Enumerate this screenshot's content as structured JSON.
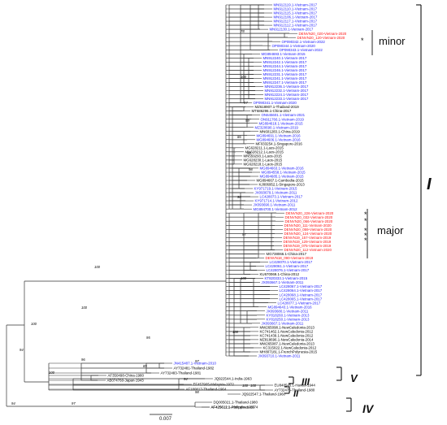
{
  "colors": {
    "vietnam_2010s": "#1a1aff",
    "vietnam_2019_2020": "#ff1010",
    "other": "#000000"
  },
  "leaves": [
    {
      "label": "MN912119.1-Vietnam-2017",
      "color": "blue"
    },
    {
      "label": "MN912110.1-Vietnam-2017",
      "color": "blue"
    },
    {
      "label": "MN912115.1-Vietnam-2017",
      "color": "blue"
    },
    {
      "label": "MN912106.1-Vietnam-2017",
      "color": "blue"
    },
    {
      "label": "MN912117.1-Vietnam-2017",
      "color": "blue"
    },
    {
      "label": "MN912112.1-Vietnam-2017",
      "color": "blue"
    },
    {
      "label": "MN912130.1-Vietnam-2017",
      "color": "blue"
    },
    {
      "label": "DENVN20_020-Vietnam-2020",
      "color": "red"
    },
    {
      "label": "DENVN20_120-Vietnam-2020",
      "color": "red"
    },
    {
      "label": "OP090342.1-Vietnam-2022",
      "color": "blue"
    },
    {
      "label": "OP090344.1-Vietnam-2020",
      "color": "blue"
    },
    {
      "label": "OP090343.1-Vietnam-2022",
      "color": "blue"
    },
    {
      "label": "MG894693.1-Vietnam-2015",
      "color": "blue"
    },
    {
      "label": "MN912240.1-Vietnam-2017",
      "color": "blue"
    },
    {
      "label": "MN912242.1-Vietnam-2017",
      "color": "blue"
    },
    {
      "label": "MN912244.1-Vietnam-2017",
      "color": "blue"
    },
    {
      "label": "MN912246.1-Vietnam-2017",
      "color": "blue"
    },
    {
      "label": "MN912231.1-Vietnam-2017",
      "color": "blue"
    },
    {
      "label": "MN912241.1-Vietnam-2017",
      "color": "blue"
    },
    {
      "label": "MN912247.1-Vietnam-2017",
      "color": "blue"
    },
    {
      "label": "MN912236.1-Vietnam-2017",
      "color": "blue"
    },
    {
      "label": "MN912232.1-Vietnam-2017",
      "color": "blue"
    },
    {
      "label": "MN912224.1-Vietnam-2017",
      "color": "blue"
    },
    {
      "label": "MN912233.1-Vietnam-2017",
      "color": "blue"
    },
    {
      "label": "OP090341.1-Vietnam-2020",
      "color": "blue"
    },
    {
      "label": "MZ618907.1-Thailand-2019",
      "color": "black"
    },
    {
      "label": "MT686296.1-China-2017",
      "color": "black"
    },
    {
      "label": "ON645601.1-Vietnam-2021",
      "color": "blue"
    },
    {
      "label": "ON911766.1-Vietnam-2019",
      "color": "blue"
    },
    {
      "label": "MG894618.1-Vietnam-2015",
      "color": "blue"
    },
    {
      "label": "MZ320690.1-Vietnam-2019",
      "color": "blue"
    },
    {
      "label": "MN601283.1-China-2019",
      "color": "black"
    },
    {
      "label": "MG894691.1-Vietnam-2016",
      "color": "blue"
    },
    {
      "label": "MG894606.1-Vietnam-2016",
      "color": "blue"
    },
    {
      "label": "MF033254.1-Singapore-2016",
      "color": "black"
    },
    {
      "label": "MG628211.1-Laos-2015",
      "color": "black"
    },
    {
      "label": "MN628212.1-Laos-2015",
      "color": "black"
    },
    {
      "label": "MN559293.1-Laos-2015",
      "color": "black"
    },
    {
      "label": "MG628230.1-Laos-2015",
      "color": "black"
    },
    {
      "label": "MG628218.1-Laos-2015",
      "color": "black"
    },
    {
      "label": "MG894663.1-Vietnam-2016",
      "color": "blue"
    },
    {
      "label": "MG894558.1-Vietnam-2015",
      "color": "blue"
    },
    {
      "label": "MG894685.1-Vietnam-2015",
      "color": "blue"
    },
    {
      "label": "MG894667.1-Cambodia-2015",
      "color": "black"
    },
    {
      "label": "KJ806952.1-Singapore-2013",
      "color": "black"
    },
    {
      "label": "KY971719.1-Vietnam-2015",
      "color": "blue"
    },
    {
      "label": "JX093679.1-Vietnam-2011",
      "color": "blue"
    },
    {
      "label": "LC428073.1-Vietnam-2017",
      "color": "blue"
    },
    {
      "label": "KY971714.1-Vietnam-2012",
      "color": "blue"
    },
    {
      "label": "JX093690.1-Vietnam-2011",
      "color": "blue"
    },
    {
      "label": "MG894700.1-Vietnam-2012",
      "color": "blue"
    },
    {
      "label": "DENVN20_226-Vietnam-2020",
      "color": "red"
    },
    {
      "label": "DENVN20_032-Vietnam-2020",
      "color": "red"
    },
    {
      "label": "DENVN20_066-Vietnam-2020",
      "color": "red"
    },
    {
      "label": "DENVN20_111-Vietnam-2020",
      "color": "red"
    },
    {
      "label": "DENVN20_059-Vietnam-2020",
      "color": "red"
    },
    {
      "label": "DENVN20_124-Vietnam-2020",
      "color": "red"
    },
    {
      "label": "DENVN19_157-Vietnam-2019",
      "color": "red"
    },
    {
      "label": "DENVN19_129-Vietnam-2019",
      "color": "red"
    },
    {
      "label": "DENVN19_075-Vietnam-2019",
      "color": "red"
    },
    {
      "label": "DENVN20_112-Vietnam-2020",
      "color": "red"
    },
    {
      "label": "MG738066.1-China-2017",
      "color": "black"
    },
    {
      "label": "DENVN18_090-Vietnam-2019",
      "color": "red"
    },
    {
      "label": "LC428070.1-Vietnam-2017",
      "color": "blue"
    },
    {
      "label": "LC428061.1-Vietnam-2017",
      "color": "blue"
    },
    {
      "label": "LC428076.1-Vietnam-2017",
      "color": "blue"
    },
    {
      "label": "KU670069.1-China-2012",
      "color": "black"
    },
    {
      "label": "KT820333.1-Vietnam-2015",
      "color": "blue"
    },
    {
      "label": "JX093667.1-Vietnam-2011",
      "color": "blue"
    },
    {
      "label": "LC428067.1-Vietnam-2017",
      "color": "blue"
    },
    {
      "label": "LC428064.1-Vietnam-2017",
      "color": "blue"
    },
    {
      "label": "LC428068.1-Vietnam-2017",
      "color": "blue"
    },
    {
      "label": "LC428065.1-Vietnam-2017",
      "color": "blue"
    },
    {
      "label": "LC428077.1-Vietnam-2017",
      "color": "blue"
    },
    {
      "label": "MG894643.1-Vietnam-2016",
      "color": "blue"
    },
    {
      "label": "JX093680.1-Vietnam-2011",
      "color": "blue"
    },
    {
      "label": "KY818260.1-Vietnam-2013",
      "color": "blue"
    },
    {
      "label": "KY818250.1-Vietnam-2013",
      "color": "blue"
    },
    {
      "label": "JX093667.1-Vietnam-2011",
      "color": "blue"
    },
    {
      "label": "MW265098.1-NewCaledonia-2013",
      "color": "black"
    },
    {
      "label": "KC741462.1-NewCaledonia-2012",
      "color": "black"
    },
    {
      "label": "KC741439.1-NewCaledonia-2012",
      "color": "black"
    },
    {
      "label": "MZ818696.1-NewCaledonia-2014",
      "color": "black"
    },
    {
      "label": "MW265087.1-NewCaledonia-2013",
      "color": "black"
    },
    {
      "label": "KC315022.1-NewCaledonia-2012",
      "color": "black"
    },
    {
      "label": "MH807181.1-FrenchPolynesia-2015",
      "color": "black"
    },
    {
      "label": "JX093710.1-Vietnam-2011",
      "color": "blue"
    },
    {
      "label": "JN415487.1-Vietnam-2010",
      "color": "blue"
    },
    {
      "label": "AY732481-Thailand-1982",
      "color": "black"
    },
    {
      "label": "AY732483-Thailand-1981",
      "color": "black"
    },
    {
      "label": "AF350498-China-1980",
      "color": "black"
    },
    {
      "label": "AB074760-Japan-1943",
      "color": "black"
    },
    {
      "label": "EU848545.1-Hawaii-1944",
      "color": "black"
    },
    {
      "label": "AY732476-Thailand-1980",
      "color": "black"
    },
    {
      "label": "JQ922544.1-India-1963",
      "color": "black"
    },
    {
      "label": "EF457905-Malaysia-1972",
      "color": "black"
    },
    {
      "label": "AF180817-Thailand-1964",
      "color": "black"
    },
    {
      "label": "JQ922547.1-Thailand-1960",
      "color": "black"
    },
    {
      "label": "DQ005021.1-Thailand-1980",
      "color": "black"
    },
    {
      "label": "AF425612.1-Philippines-1974",
      "color": "black"
    },
    {
      "label": "AF425611.1-Australia-1983",
      "color": "black"
    }
  ],
  "bootstrap_values": [
    "100",
    "94",
    "96",
    "100",
    "100",
    "95",
    "89",
    "97",
    "100",
    "78",
    "97",
    "96",
    "86",
    "99",
    "97",
    "98",
    "98",
    "100",
    "100",
    "100",
    "94",
    "97",
    "94",
    "98",
    "100",
    "100"
  ],
  "annotations": {
    "minor": "minor",
    "major": "major",
    "star": "*",
    "genotype_I": "I",
    "genotype_V": "V",
    "genotype_III": "III",
    "genotype_II": "II",
    "genotype_IV": "IV"
  },
  "scale_bar": {
    "label": "0.007"
  }
}
